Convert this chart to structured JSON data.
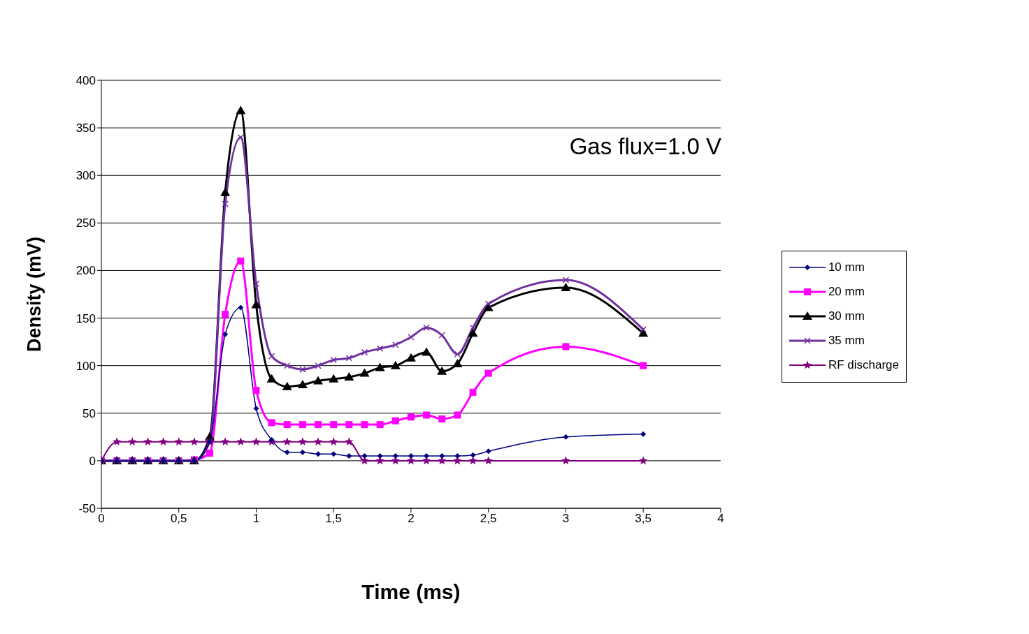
{
  "chart_data": {
    "type": "line",
    "xlabel": "Time (ms)",
    "ylabel": "Density (mV)",
    "annotations": [
      "Gas flux=1.0 V"
    ],
    "x": [
      0,
      0.1,
      0.2,
      0.3,
      0.4,
      0.5,
      0.6,
      0.7,
      0.8,
      0.9,
      1.0,
      1.1,
      1.2,
      1.3,
      1.4,
      1.5,
      1.6,
      1.7,
      1.8,
      1.9,
      2.0,
      2.1,
      2.2,
      2.3,
      2.4,
      2.5,
      3,
      3.5
    ],
    "series": [
      {
        "name": "10 mm",
        "color": "#000080",
        "marker": "diamond",
        "values": [
          0,
          0,
          0,
          0,
          0,
          0,
          0,
          20,
          133,
          161,
          55,
          22,
          9,
          9,
          7,
          7,
          5,
          5,
          5,
          5,
          5,
          5,
          5,
          5,
          6,
          10,
          25,
          28
        ]
      },
      {
        "name": "20 mm",
        "color": "#ff00ff",
        "marker": "square",
        "values": [
          0,
          0,
          0,
          0,
          0,
          0,
          1,
          8,
          154,
          210,
          74,
          40,
          38,
          38,
          38,
          38,
          38,
          38,
          38,
          42,
          46,
          48,
          44,
          48,
          72,
          92,
          120,
          100
        ]
      },
      {
        "name": "30 mm",
        "color": "#000000",
        "marker": "triangle",
        "values": [
          0,
          0,
          0,
          0,
          0,
          0,
          0,
          25,
          282,
          368,
          164,
          86,
          78,
          80,
          84,
          86,
          88,
          92,
          98,
          100,
          108,
          114,
          94,
          102,
          134,
          161,
          182,
          134
        ]
      },
      {
        "name": "35 mm",
        "color": "#7030a0",
        "marker": "cross",
        "values": [
          0,
          0,
          0,
          0,
          0,
          0,
          0,
          20,
          270,
          340,
          186,
          110,
          100,
          96,
          100,
          106,
          108,
          114,
          118,
          122,
          130,
          140,
          132,
          112,
          140,
          165,
          190,
          138
        ]
      },
      {
        "name": "RF discharge",
        "color": "#800080",
        "marker": "star",
        "values": [
          0,
          20,
          20,
          20,
          20,
          20,
          20,
          20,
          20,
          20,
          20,
          20,
          20,
          20,
          20,
          20,
          20,
          0,
          0,
          0,
          0,
          0,
          0,
          0,
          0,
          0,
          0,
          0
        ]
      }
    ],
    "xlim": [
      0,
      4
    ],
    "xticks": [
      0,
      {
        "value": 0.5,
        "label": "0,5"
      },
      1,
      {
        "value": 1.5,
        "label": "1,5"
      },
      2,
      {
        "value": 2.5,
        "label": "2,5"
      },
      3,
      {
        "value": 3.5,
        "label": "3,5"
      },
      4
    ],
    "ylim": [
      -50,
      400
    ],
    "yticks": [
      -50,
      0,
      50,
      100,
      150,
      200,
      250,
      300,
      350,
      400
    ],
    "grid": "y",
    "legend": "right"
  }
}
